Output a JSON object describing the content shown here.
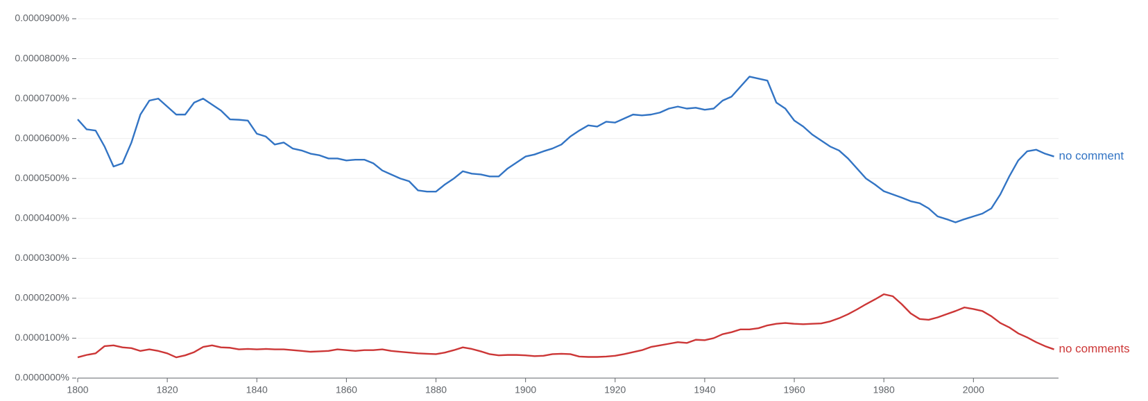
{
  "chart_data": {
    "type": "line",
    "x": [
      1800,
      1802,
      1804,
      1806,
      1808,
      1810,
      1812,
      1814,
      1816,
      1818,
      1820,
      1822,
      1824,
      1826,
      1828,
      1830,
      1832,
      1834,
      1836,
      1838,
      1840,
      1842,
      1844,
      1846,
      1848,
      1850,
      1852,
      1854,
      1856,
      1858,
      1860,
      1862,
      1864,
      1866,
      1868,
      1870,
      1872,
      1874,
      1876,
      1878,
      1880,
      1882,
      1884,
      1886,
      1888,
      1890,
      1892,
      1894,
      1896,
      1898,
      1900,
      1902,
      1904,
      1906,
      1908,
      1910,
      1912,
      1914,
      1916,
      1918,
      1920,
      1922,
      1924,
      1926,
      1928,
      1930,
      1932,
      1934,
      1936,
      1938,
      1940,
      1942,
      1944,
      1946,
      1948,
      1950,
      1952,
      1954,
      1956,
      1958,
      1960,
      1962,
      1964,
      1966,
      1968,
      1970,
      1972,
      1974,
      1976,
      1978,
      1980,
      1982,
      1984,
      1986,
      1988,
      1990,
      1992,
      1994,
      1996,
      1998,
      2000,
      2002,
      2004,
      2006,
      2008,
      2010,
      2012,
      2014,
      2016,
      2018
    ],
    "series": [
      {
        "name": "no comment",
        "color": "#3274c4",
        "values": [
          6.48e-05,
          6.23e-05,
          6.2e-05,
          5.8e-05,
          5.3e-05,
          5.38e-05,
          5.9e-05,
          6.6e-05,
          6.95e-05,
          7e-05,
          6.8e-05,
          6.6e-05,
          6.6e-05,
          6.9e-05,
          7e-05,
          6.85e-05,
          6.7e-05,
          6.48e-05,
          6.47e-05,
          6.45e-05,
          6.12e-05,
          6.05e-05,
          5.85e-05,
          5.9e-05,
          5.75e-05,
          5.7e-05,
          5.62e-05,
          5.58e-05,
          5.5e-05,
          5.5e-05,
          5.45e-05,
          5.47e-05,
          5.47e-05,
          5.38e-05,
          5.2e-05,
          5.1e-05,
          5e-05,
          4.93e-05,
          4.7e-05,
          4.67e-05,
          4.67e-05,
          4.85e-05,
          5e-05,
          5.18e-05,
          5.12e-05,
          5.1e-05,
          5.05e-05,
          5.05e-05,
          5.25e-05,
          5.4e-05,
          5.55e-05,
          5.6e-05,
          5.68e-05,
          5.75e-05,
          5.85e-05,
          6.05e-05,
          6.2e-05,
          6.33e-05,
          6.3e-05,
          6.42e-05,
          6.4e-05,
          6.5e-05,
          6.6e-05,
          6.58e-05,
          6.6e-05,
          6.65e-05,
          6.75e-05,
          6.8e-05,
          6.75e-05,
          6.77e-05,
          6.72e-05,
          6.75e-05,
          6.95e-05,
          7.05e-05,
          7.3e-05,
          7.55e-05,
          7.5e-05,
          7.45e-05,
          6.9e-05,
          6.75e-05,
          6.45e-05,
          6.3e-05,
          6.1e-05,
          5.95e-05,
          5.8e-05,
          5.7e-05,
          5.5e-05,
          5.25e-05,
          5e-05,
          4.85e-05,
          4.68e-05,
          4.6e-05,
          4.52e-05,
          4.43e-05,
          4.38e-05,
          4.25e-05,
          4.05e-05,
          3.98e-05,
          3.9e-05,
          3.98e-05,
          4.05e-05,
          4.12e-05,
          4.25e-05,
          4.6e-05,
          5.05e-05,
          5.45e-05,
          5.68e-05,
          5.72e-05,
          5.62e-05,
          5.55e-05
        ]
      },
      {
        "name": "no comments",
        "color": "#cc3636",
        "values": [
          5.2e-06,
          5.8e-06,
          6.2e-06,
          8e-06,
          8.2e-06,
          7.7e-06,
          7.5e-06,
          6.8e-06,
          7.2e-06,
          6.8e-06,
          6.2e-06,
          5.2e-06,
          5.7e-06,
          6.5e-06,
          7.8e-06,
          8.2e-06,
          7.7e-06,
          7.6e-06,
          7.2e-06,
          7.3e-06,
          7.2e-06,
          7.3e-06,
          7.2e-06,
          7.2e-06,
          7e-06,
          6.8e-06,
          6.6e-06,
          6.7e-06,
          6.8e-06,
          7.2e-06,
          7e-06,
          6.8e-06,
          7e-06,
          7e-06,
          7.2e-06,
          6.8e-06,
          6.6e-06,
          6.4e-06,
          6.2e-06,
          6.1e-06,
          6e-06,
          6.4e-06,
          7e-06,
          7.7e-06,
          7.3e-06,
          6.7e-06,
          6e-06,
          5.7e-06,
          5.8e-06,
          5.8e-06,
          5.7e-06,
          5.5e-06,
          5.6e-06,
          6e-06,
          6.1e-06,
          6e-06,
          5.4e-06,
          5.3e-06,
          5.3e-06,
          5.4e-06,
          5.6e-06,
          6e-06,
          6.5e-06,
          7e-06,
          7.8e-06,
          8.2e-06,
          8.6e-06,
          9e-06,
          8.8e-06,
          9.6e-06,
          9.5e-06,
          1e-05,
          1.1e-05,
          1.15e-05,
          1.22e-05,
          1.22e-05,
          1.25e-05,
          1.32e-05,
          1.36e-05,
          1.38e-05,
          1.36e-05,
          1.35e-05,
          1.36e-05,
          1.37e-05,
          1.42e-05,
          1.5e-05,
          1.6e-05,
          1.72e-05,
          1.85e-05,
          1.97e-05,
          2.1e-05,
          2.05e-05,
          1.85e-05,
          1.62e-05,
          1.48e-05,
          1.46e-05,
          1.52e-05,
          1.6e-05,
          1.68e-05,
          1.77e-05,
          1.73e-05,
          1.68e-05,
          1.55e-05,
          1.38e-05,
          1.27e-05,
          1.12e-05,
          1.02e-05,
          9e-06,
          8e-06,
          7.2e-06
        ]
      }
    ],
    "xlim": [
      1800,
      2019
    ],
    "xticks": [
      1800,
      1820,
      1840,
      1860,
      1880,
      1900,
      1920,
      1940,
      1960,
      1980,
      2000
    ],
    "ylim": [
      0,
      9e-05
    ],
    "yticks": [
      {
        "value": 0,
        "label": "0.0000000%"
      },
      {
        "value": 1e-05,
        "label": "0.0000100%"
      },
      {
        "value": 2e-05,
        "label": "0.0000200%"
      },
      {
        "value": 3e-05,
        "label": "0.0000300%"
      },
      {
        "value": 4e-05,
        "label": "0.0000400%"
      },
      {
        "value": 5e-05,
        "label": "0.0000500%"
      },
      {
        "value": 6e-05,
        "label": "0.0000600%"
      },
      {
        "value": 7e-05,
        "label": "0.0000700%"
      },
      {
        "value": 8e-05,
        "label": "0.0000800%"
      },
      {
        "value": 9e-05,
        "label": "0.0000900%"
      }
    ],
    "grid": true
  }
}
